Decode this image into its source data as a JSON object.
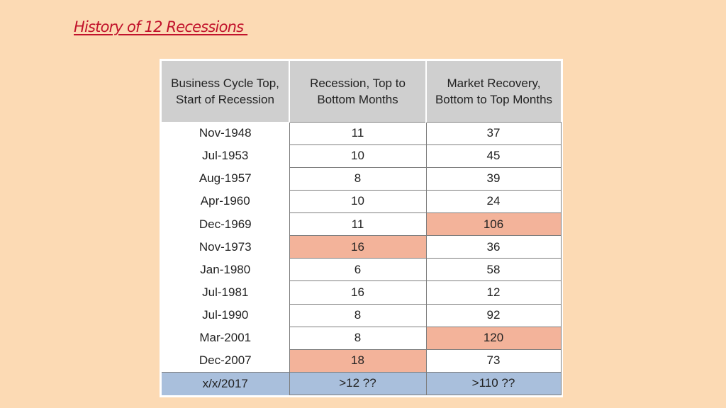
{
  "slide": {
    "title": "History of 12 Recessions "
  },
  "table": {
    "columns": [
      "Business Cycle Top, Start of Recession",
      "Recession, Top to Bottom Months",
      "Market Recovery, Bottom to Top Months"
    ],
    "rows": [
      {
        "start": "Nov-1948",
        "recession_months": "11",
        "recovery_months": "37"
      },
      {
        "start": "Jul-1953",
        "recession_months": "10",
        "recovery_months": "45"
      },
      {
        "start": "Aug-1957",
        "recession_months": "8",
        "recovery_months": "39"
      },
      {
        "start": "Apr-1960",
        "recession_months": "10",
        "recovery_months": "24"
      },
      {
        "start": "Dec-1969",
        "recession_months": "11",
        "recovery_months": "106"
      },
      {
        "start": "Nov-1973",
        "recession_months": "16",
        "recovery_months": "36"
      },
      {
        "start": "Jan-1980",
        "recession_months": "6",
        "recovery_months": "58"
      },
      {
        "start": "Jul-1981",
        "recession_months": "16",
        "recovery_months": "12"
      },
      {
        "start": "Jul-1990",
        "recession_months": "8",
        "recovery_months": "92"
      },
      {
        "start": "Mar-2001",
        "recession_months": "8",
        "recovery_months": "120"
      },
      {
        "start": "Dec-2007",
        "recession_months": "18",
        "recovery_months": "73"
      }
    ],
    "footer": {
      "start": "x/x/2017",
      "recession_months": ">12 ??",
      "recovery_months": ">110 ??"
    },
    "highlighted_cells": [
      {
        "row": 4,
        "column": "recovery_months"
      },
      {
        "row": 5,
        "column": "recession_months"
      },
      {
        "row": 9,
        "column": "recovery_months"
      },
      {
        "row": 10,
        "column": "recession_months"
      }
    ]
  },
  "colors": {
    "slide_background": "#fcdab4",
    "title_text": "#c1122b",
    "header_fill": "#cfcfcf",
    "highlight_fill": "#f3b39a",
    "footer_fill": "#a9bfdc"
  }
}
